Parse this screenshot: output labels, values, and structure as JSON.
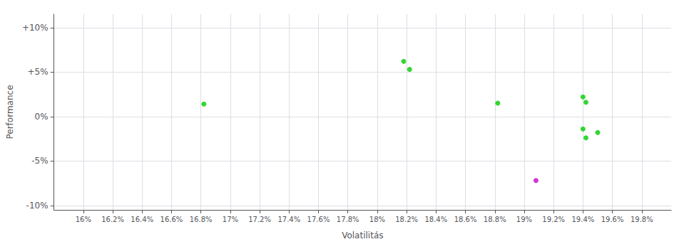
{
  "chart_data": {
    "type": "scatter",
    "xlabel": "Volatilitás",
    "ylabel": "Performance",
    "xlim": [
      0.158,
      0.2
    ],
    "ylim": [
      -0.105,
      0.115
    ],
    "xticks": [
      {
        "value": 0.16,
        "label": "16%"
      },
      {
        "value": 0.162,
        "label": "16.2%"
      },
      {
        "value": 0.164,
        "label": "16.4%"
      },
      {
        "value": 0.166,
        "label": "16.6%"
      },
      {
        "value": 0.168,
        "label": "16.8%"
      },
      {
        "value": 0.17,
        "label": "17%"
      },
      {
        "value": 0.172,
        "label": "17.2%"
      },
      {
        "value": 0.174,
        "label": "17.4%"
      },
      {
        "value": 0.176,
        "label": "17.6%"
      },
      {
        "value": 0.178,
        "label": "17.8%"
      },
      {
        "value": 0.18,
        "label": "18%"
      },
      {
        "value": 0.182,
        "label": "18.2%"
      },
      {
        "value": 0.184,
        "label": "18.4%"
      },
      {
        "value": 0.186,
        "label": "18.6%"
      },
      {
        "value": 0.188,
        "label": "18.8%"
      },
      {
        "value": 0.19,
        "label": "19%"
      },
      {
        "value": 0.192,
        "label": "19.2%"
      },
      {
        "value": 0.194,
        "label": "19.4%"
      },
      {
        "value": 0.196,
        "label": "19.6%"
      },
      {
        "value": 0.198,
        "label": "19.8%"
      }
    ],
    "yticks": [
      {
        "value": -0.1,
        "label": "-10%"
      },
      {
        "value": -0.05,
        "label": "-5%"
      },
      {
        "value": 0.0,
        "label": "0%"
      },
      {
        "value": 0.05,
        "label": "+5%"
      },
      {
        "value": 0.1,
        "label": "+10%"
      }
    ],
    "grid": true,
    "series": [
      {
        "color": "#00cc00",
        "x": [
          0.1682,
          0.1818,
          0.1822,
          0.1882,
          0.194,
          0.1942,
          0.194,
          0.195,
          0.1942
        ],
        "values": [
          0.014,
          0.062,
          0.053,
          0.015,
          0.022,
          0.016,
          -0.014,
          -0.018,
          -0.024
        ]
      },
      {
        "color": "#cc00cc",
        "x": [
          0.1908
        ],
        "values": [
          -0.072
        ]
      }
    ]
  }
}
